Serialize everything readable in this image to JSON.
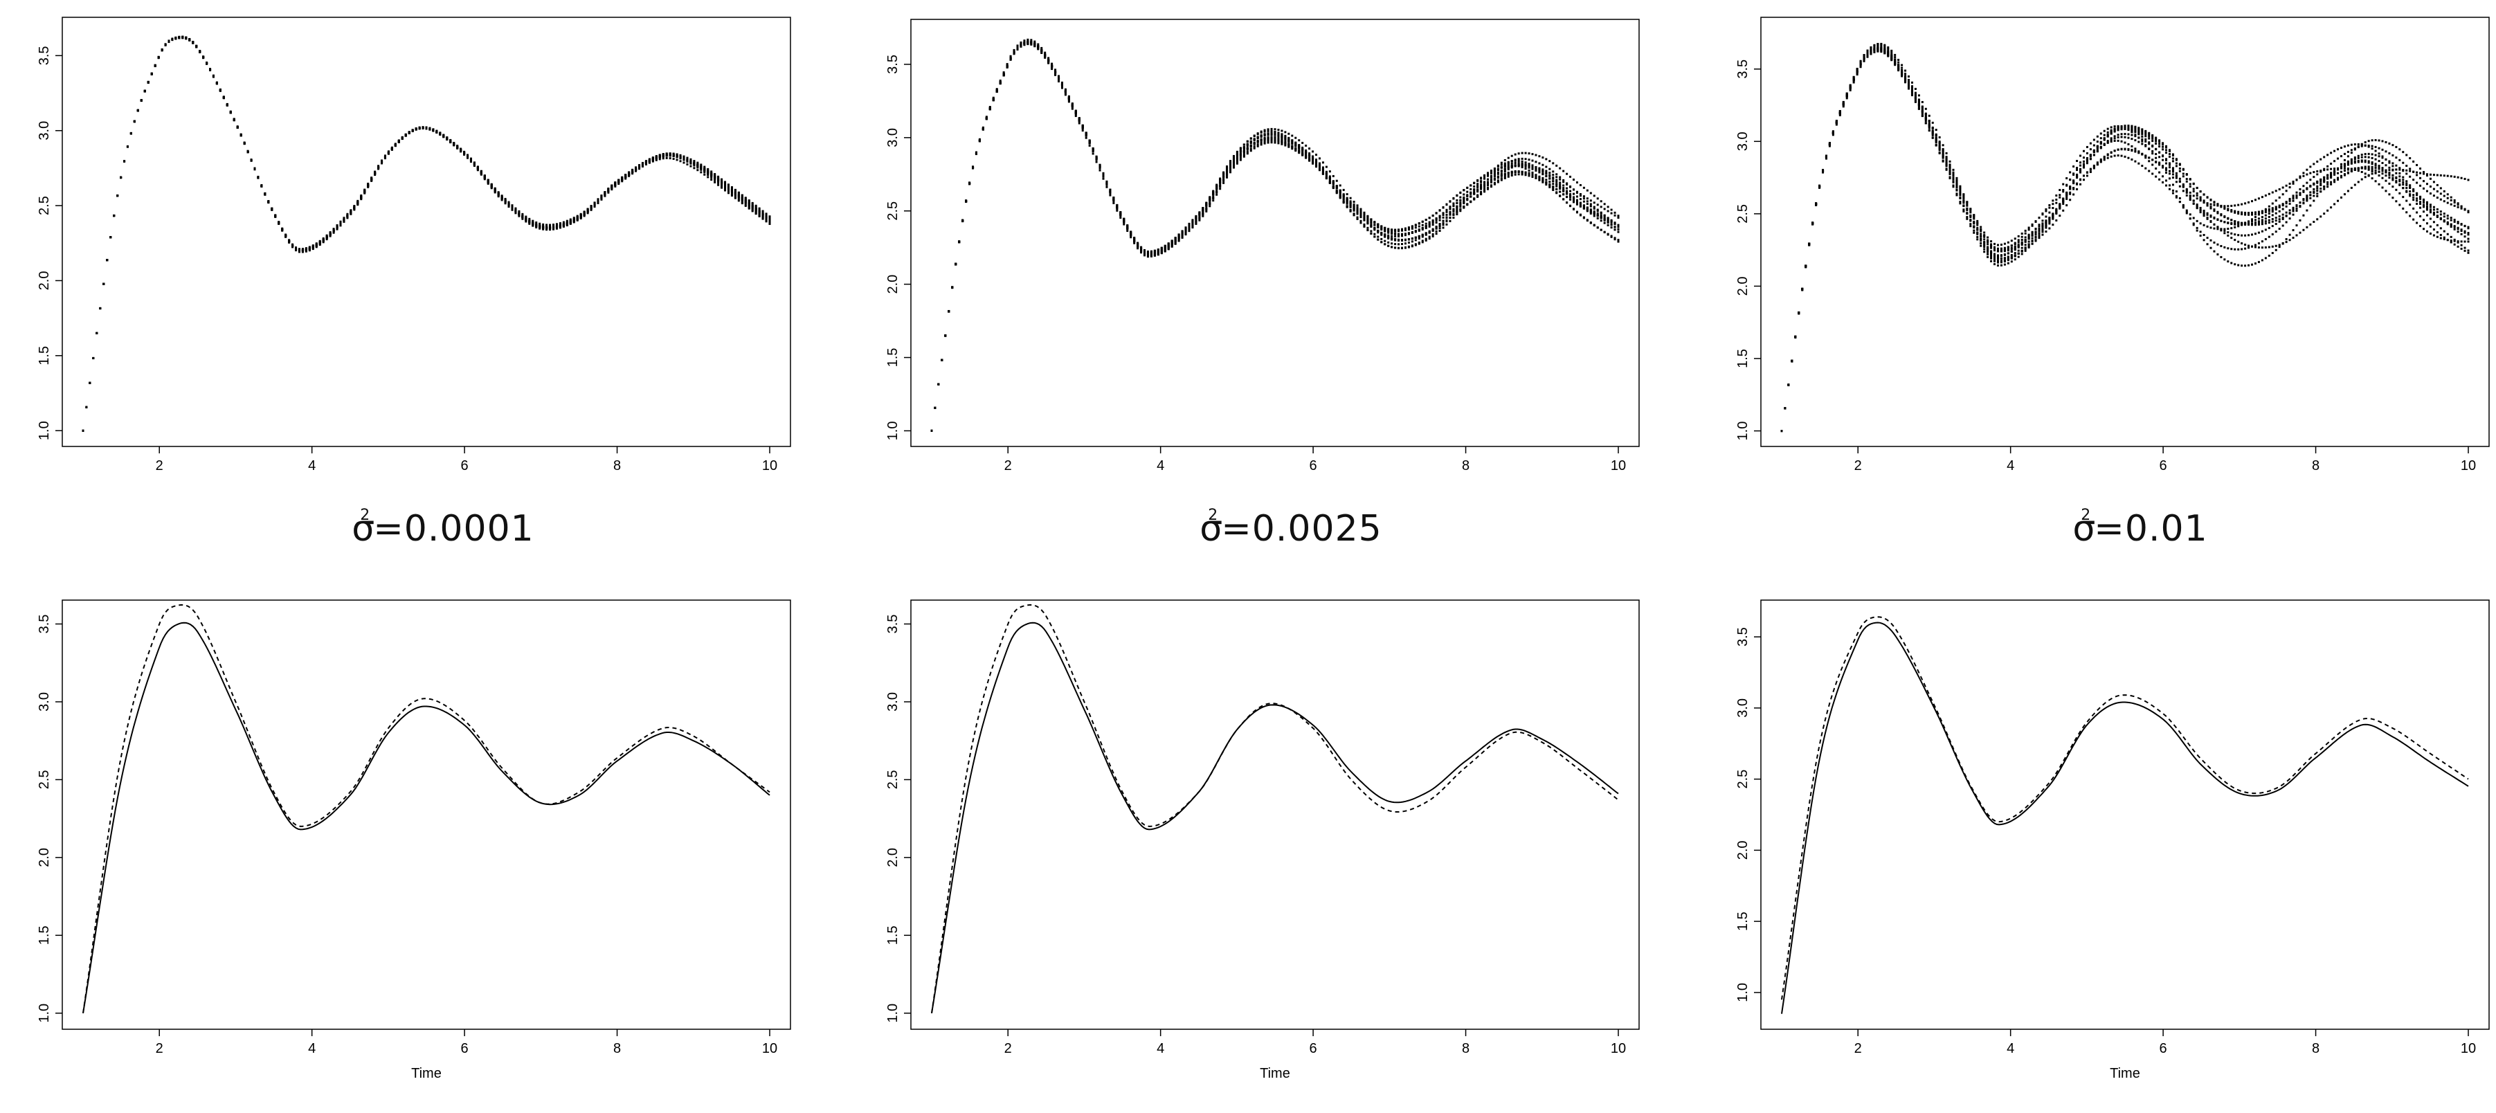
{
  "labels": [
    {
      "prefix": "σ",
      "sup": "2",
      "text": "=0.0001"
    },
    {
      "prefix": "σ",
      "sup": "2",
      "text": "=0.0025"
    },
    {
      "prefix": "σ",
      "sup": "2",
      "text": "=0.01"
    }
  ],
  "chart_data": [
    {
      "type": "scatter",
      "title": "",
      "xlabel": "",
      "ylabel": "",
      "xlim": [
        1,
        10
      ],
      "ylim": [
        0.95,
        3.7
      ],
      "xticks": [
        "2",
        "4",
        "6",
        "8",
        "10"
      ],
      "yticks": [
        "1.0",
        "1.5",
        "2.0",
        "2.5",
        "3.0",
        "3.5"
      ],
      "series": [
        {
          "values_desc": "damped oscillation sample paths",
          "noise_var": 0.0001,
          "n_paths": 12,
          "x": [
            1,
            1.5,
            2,
            2.25,
            2.5,
            3,
            3.5,
            3.85,
            4.5,
            5,
            5.45,
            6,
            6.5,
            7,
            7.5,
            8,
            8.6,
            9,
            9.5,
            10
          ],
          "y": [
            1.0,
            2.7,
            3.5,
            3.62,
            3.55,
            3.05,
            2.45,
            2.2,
            2.45,
            2.85,
            3.02,
            2.85,
            2.55,
            2.36,
            2.42,
            2.65,
            2.83,
            2.78,
            2.6,
            2.4
          ]
        }
      ]
    },
    {
      "type": "scatter",
      "title": "",
      "xlabel": "",
      "ylabel": "",
      "xlim": [
        1,
        10
      ],
      "ylim": [
        0.95,
        3.75
      ],
      "xticks": [
        "2",
        "4",
        "6",
        "8",
        "10"
      ],
      "yticks": [
        "1.0",
        "1.5",
        "2.0",
        "2.5",
        "3.0",
        "3.5"
      ],
      "series": [
        {
          "values_desc": "damped oscillation sample paths",
          "noise_var": 0.0025,
          "n_paths": 12,
          "x": [
            1,
            1.5,
            2,
            2.25,
            2.5,
            3,
            3.5,
            3.85,
            4.5,
            5,
            5.45,
            6,
            6.5,
            7,
            7.5,
            8,
            8.6,
            9,
            9.5,
            10
          ],
          "y": [
            1.0,
            2.7,
            3.5,
            3.65,
            3.55,
            3.05,
            2.45,
            2.2,
            2.45,
            2.85,
            3.0,
            2.85,
            2.55,
            2.35,
            2.4,
            2.6,
            2.8,
            2.75,
            2.55,
            2.38
          ]
        }
      ]
    },
    {
      "type": "scatter",
      "title": "",
      "xlabel": "",
      "ylabel": "",
      "xlim": [
        1,
        10
      ],
      "ylim": [
        0.95,
        3.8
      ],
      "xticks": [
        "2",
        "4",
        "6",
        "8",
        "10"
      ],
      "yticks": [
        "1.0",
        "1.5",
        "2.0",
        "2.5",
        "3.0",
        "3.5"
      ],
      "series": [
        {
          "values_desc": "damped oscillation sample paths",
          "noise_var": 0.01,
          "n_paths": 12,
          "x": [
            1,
            1.5,
            2,
            2.25,
            2.5,
            3,
            3.5,
            3.85,
            4.5,
            5,
            5.45,
            6,
            6.5,
            7,
            7.5,
            8,
            8.6,
            9,
            9.5,
            10
          ],
          "y": [
            1.0,
            2.7,
            3.5,
            3.65,
            3.55,
            3.05,
            2.45,
            2.2,
            2.45,
            2.85,
            3.05,
            2.9,
            2.55,
            2.4,
            2.45,
            2.65,
            2.85,
            2.8,
            2.6,
            2.45
          ]
        }
      ]
    },
    {
      "type": "line",
      "title": "",
      "xlabel": "Time",
      "ylabel": "",
      "xlim": [
        1,
        10
      ],
      "ylim": [
        0.95,
        3.6
      ],
      "xticks": [
        "2",
        "4",
        "6",
        "8",
        "10"
      ],
      "yticks": [
        "1.0",
        "1.5",
        "2.0",
        "2.5",
        "3.0",
        "3.5"
      ],
      "series": [
        {
          "style": "solid",
          "x": [
            1,
            1.5,
            2,
            2.25,
            2.5,
            3,
            3.5,
            3.85,
            4.5,
            5,
            5.45,
            6,
            6.5,
            7,
            7.5,
            8,
            8.6,
            9,
            9.5,
            10
          ],
          "y": [
            1.0,
            2.5,
            3.35,
            3.5,
            3.45,
            2.95,
            2.4,
            2.18,
            2.4,
            2.8,
            2.97,
            2.85,
            2.55,
            2.35,
            2.4,
            2.62,
            2.8,
            2.75,
            2.6,
            2.4
          ]
        },
        {
          "style": "dashed",
          "x": [
            1,
            1.5,
            2,
            2.25,
            2.5,
            3,
            3.5,
            3.85,
            4.5,
            5,
            5.45,
            6,
            6.5,
            7,
            7.5,
            8,
            8.6,
            9,
            9.5,
            10
          ],
          "y": [
            1.0,
            2.65,
            3.5,
            3.62,
            3.55,
            3.0,
            2.42,
            2.2,
            2.42,
            2.83,
            3.02,
            2.88,
            2.57,
            2.35,
            2.42,
            2.64,
            2.83,
            2.78,
            2.6,
            2.42
          ]
        }
      ]
    },
    {
      "type": "line",
      "title": "",
      "xlabel": "Time",
      "ylabel": "",
      "xlim": [
        1,
        10
      ],
      "ylim": [
        0.95,
        3.6
      ],
      "xticks": [
        "2",
        "4",
        "6",
        "8",
        "10"
      ],
      "yticks": [
        "1.0",
        "1.5",
        "2.0",
        "2.5",
        "3.0",
        "3.5"
      ],
      "series": [
        {
          "style": "solid",
          "x": [
            1,
            1.5,
            2,
            2.25,
            2.5,
            3,
            3.5,
            3.85,
            4.5,
            5,
            5.45,
            6,
            6.5,
            7,
            7.5,
            8,
            8.6,
            9,
            9.5,
            10
          ],
          "y": [
            1.0,
            2.5,
            3.35,
            3.5,
            3.45,
            2.95,
            2.4,
            2.18,
            2.42,
            2.82,
            2.98,
            2.85,
            2.55,
            2.36,
            2.42,
            2.62,
            2.82,
            2.76,
            2.6,
            2.41
          ]
        },
        {
          "style": "dashed",
          "x": [
            1,
            1.5,
            2,
            2.25,
            2.5,
            3,
            3.5,
            3.85,
            4.5,
            5,
            5.45,
            6,
            6.5,
            7,
            7.5,
            8,
            8.6,
            9,
            9.5,
            10
          ],
          "y": [
            1.0,
            2.65,
            3.5,
            3.62,
            3.55,
            3.0,
            2.42,
            2.2,
            2.42,
            2.82,
            2.99,
            2.83,
            2.5,
            2.3,
            2.36,
            2.58,
            2.8,
            2.74,
            2.56,
            2.37
          ]
        }
      ]
    },
    {
      "type": "line",
      "title": "",
      "xlabel": "Time",
      "ylabel": "",
      "xlim": [
        1,
        10
      ],
      "ylim": [
        0.8,
        3.7
      ],
      "xticks": [
        "2",
        "4",
        "6",
        "8",
        "10"
      ],
      "yticks": [
        "1.0",
        "1.5",
        "2.0",
        "2.5",
        "3.0",
        "3.5"
      ],
      "series": [
        {
          "style": "solid",
          "x": [
            1,
            1.5,
            2,
            2.25,
            2.5,
            3,
            3.5,
            3.85,
            4.5,
            5,
            5.45,
            6,
            6.5,
            7,
            7.5,
            8,
            8.6,
            9,
            9.5,
            10
          ],
          "y": [
            0.85,
            2.65,
            3.48,
            3.6,
            3.5,
            3.0,
            2.42,
            2.18,
            2.45,
            2.88,
            3.04,
            2.92,
            2.6,
            2.4,
            2.42,
            2.65,
            2.88,
            2.8,
            2.62,
            2.45
          ]
        },
        {
          "style": "dashed",
          "x": [
            1,
            1.5,
            2,
            2.25,
            2.5,
            3,
            3.5,
            3.85,
            4.5,
            5,
            5.45,
            6,
            6.5,
            7,
            7.5,
            8,
            8.6,
            9,
            9.5,
            10
          ],
          "y": [
            0.95,
            2.75,
            3.53,
            3.64,
            3.55,
            3.02,
            2.43,
            2.2,
            2.47,
            2.9,
            3.09,
            2.96,
            2.64,
            2.42,
            2.44,
            2.68,
            2.92,
            2.86,
            2.68,
            2.5
          ]
        }
      ]
    }
  ]
}
